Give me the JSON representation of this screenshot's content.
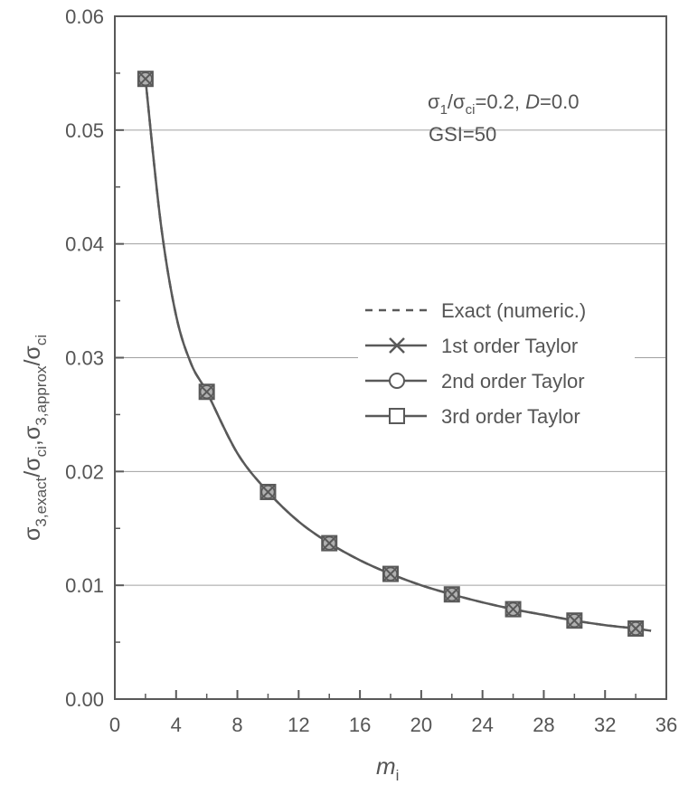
{
  "chart_data": {
    "type": "line",
    "x_axis": {
      "label_main": "m",
      "label_sub": "i",
      "range": [
        0,
        36
      ],
      "ticks": [
        "0",
        "4",
        "8",
        "12",
        "16",
        "20",
        "24",
        "28",
        "32",
        "36"
      ]
    },
    "y_axis": {
      "label_part1_main": "σ",
      "label_part1_sub": "3,exact",
      "label_part1_sep": "/σ",
      "label_part1_sub2": "ci",
      "label_part1_tail": ",",
      "label_part2_main": "σ",
      "label_part2_sub": "3,approx",
      "label_part2_sep": "/σ",
      "label_part2_sub2": "ci",
      "range": [
        0,
        0.06
      ],
      "ticks": [
        "0.00",
        "0.01",
        "0.02",
        "0.03",
        "0.04",
        "0.05",
        "0.06"
      ]
    },
    "grid": "horizontal",
    "annotation": {
      "line1_a": "σ",
      "line1_a_sub": "1",
      "line1_b": "/σ",
      "line1_b_sub": "ci",
      "line1_c": "=0.2, ",
      "line1_d": "D",
      "line1_e": "=0.0",
      "line2": "GSI=50"
    },
    "legend_position": "right",
    "series": [
      {
        "name": "Exact (numeric.)",
        "style": "dashed",
        "x": [
          2,
          3,
          4,
          5,
          6,
          8,
          10,
          12,
          14,
          16,
          18,
          20,
          22,
          24,
          26,
          28,
          30,
          32,
          34,
          35
        ],
        "y": [
          0.0545,
          0.0418,
          0.0337,
          0.0294,
          0.027,
          0.0216,
          0.0182,
          0.0156,
          0.0137,
          0.0122,
          0.011,
          0.01,
          0.0092,
          0.0085,
          0.0079,
          0.0074,
          0.0069,
          0.0065,
          0.0062,
          0.006
        ]
      },
      {
        "name": "1st order Taylor",
        "marker": "x",
        "x": [
          2,
          6,
          10,
          14,
          18,
          22,
          26,
          30,
          34
        ],
        "y": [
          0.0545,
          0.027,
          0.0182,
          0.0137,
          0.011,
          0.0092,
          0.0079,
          0.0069,
          0.0062
        ]
      },
      {
        "name": "2nd order Taylor",
        "marker": "circle",
        "x": [
          2,
          6,
          10,
          14,
          18,
          22,
          26,
          30,
          34
        ],
        "y": [
          0.0545,
          0.027,
          0.0182,
          0.0137,
          0.011,
          0.0092,
          0.0079,
          0.0069,
          0.0062
        ]
      },
      {
        "name": "3rd order Taylor",
        "marker": "square",
        "x": [
          2,
          6,
          10,
          14,
          18,
          22,
          26,
          30,
          34
        ],
        "y": [
          0.0545,
          0.027,
          0.0182,
          0.0137,
          0.011,
          0.0092,
          0.0079,
          0.0069,
          0.0062
        ]
      }
    ],
    "colors": {
      "line": "#595959",
      "text": "#555555",
      "grid": "#a0a0a0",
      "marker_fill": "#b0b0b0"
    }
  }
}
